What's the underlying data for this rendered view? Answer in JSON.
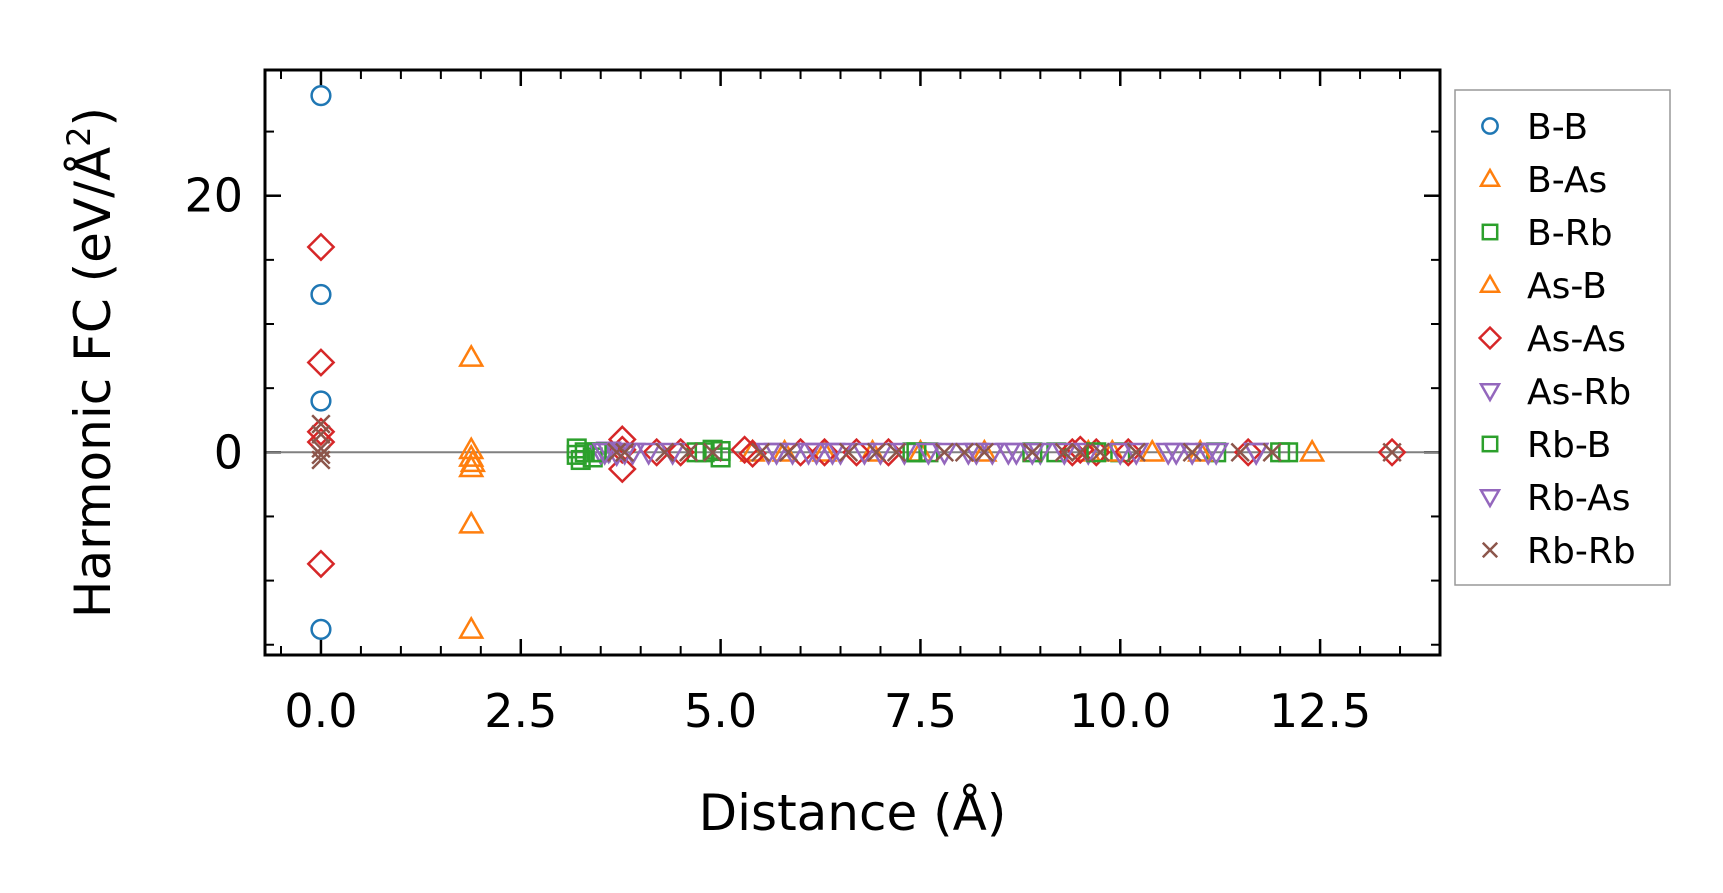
{
  "chart_data": {
    "type": "scatter",
    "title": "",
    "xlabel": "Distance (Å)",
    "ylabel_main": "Harmonic FC (eV/Å",
    "ylabel_sup": "2",
    "ylabel_close": ")",
    "xlim": [
      -0.7,
      14.0
    ],
    "ylim": [
      -15.8,
      29.8
    ],
    "xticks": [
      0.0,
      2.5,
      5.0,
      7.5,
      10.0,
      12.5
    ],
    "xtick_labels": [
      "0.0",
      "2.5",
      "5.0",
      "7.5",
      "10.0",
      "12.5"
    ],
    "yticks": [
      0,
      20
    ],
    "ytick_labels": [
      "0",
      "20"
    ],
    "zero_line": true,
    "grid": false,
    "legend_position": "outside-right",
    "series": [
      {
        "name": "B-B",
        "marker": "circle",
        "color": "#1f77b4",
        "x": [
          0,
          0,
          0,
          0
        ],
        "y": [
          27.8,
          12.3,
          4.0,
          -13.8
        ]
      },
      {
        "name": "B-As",
        "marker": "triangle-up",
        "color": "#ff7f0e",
        "x": [
          1.88,
          1.88,
          1.88,
          1.88,
          1.88,
          1.88,
          5.8,
          6.3,
          7.5,
          9.6,
          10.4,
          12.4
        ],
        "y": [
          7.4,
          0.2,
          -0.4,
          -1.2,
          -5.6,
          -13.8,
          0.0,
          0.0,
          0.0,
          0.0,
          0.0,
          0.0
        ]
      },
      {
        "name": "B-Rb",
        "marker": "square",
        "color": "#2ca02c",
        "x": [
          3.2,
          3.2,
          3.25,
          3.4,
          3.5,
          4.7,
          4.9,
          5.0,
          5.0,
          7.4,
          7.6,
          9.2,
          10.0,
          11.2,
          12.1
        ],
        "y": [
          0.3,
          -0.2,
          -0.6,
          -0.4,
          0.0,
          0.0,
          0.2,
          -0.4,
          0.1,
          0.0,
          0.0,
          0.0,
          0.0,
          0.0,
          0.0
        ]
      },
      {
        "name": "As-B",
        "marker": "triangle-up",
        "color": "#ff7f0e",
        "x": [
          1.9,
          5.4,
          6.9,
          8.3,
          9.9,
          11.0
        ],
        "y": [
          -0.8,
          0.0,
          0.0,
          0.0,
          0.0,
          0.0
        ]
      },
      {
        "name": "As-As",
        "marker": "diamond",
        "color": "#d62728",
        "x": [
          0,
          0,
          0,
          0,
          0,
          3.77,
          3.77,
          3.77,
          4.2,
          4.5,
          5.3,
          5.4,
          6.0,
          6.3,
          6.7,
          7.1,
          9.4,
          9.5,
          9.7,
          10.1,
          11.6,
          13.4
        ],
        "y": [
          16.0,
          7.0,
          1.6,
          0.8,
          -8.7,
          1.0,
          0.2,
          -1.3,
          0.0,
          0.0,
          0.2,
          -0.1,
          0.0,
          0.0,
          0.0,
          0.0,
          0.0,
          0.2,
          0.0,
          0.0,
          0.0,
          0.0
        ]
      },
      {
        "name": "As-Rb",
        "marker": "triangle-down",
        "color": "#9467bd",
        "x": [
          3.5,
          3.6,
          3.7,
          3.9,
          4.1,
          4.4,
          5.6,
          5.9,
          6.2,
          6.4,
          6.8,
          7.3,
          7.8,
          8.1,
          8.4,
          8.7,
          9.0,
          9.6,
          10.2,
          10.6,
          10.9,
          11.2,
          11.7
        ],
        "y": [
          0.0,
          0.1,
          -0.1,
          0.0,
          0.0,
          0.0,
          0.0,
          0.0,
          0.0,
          0.0,
          0.0,
          0.0,
          0.0,
          0.0,
          0.0,
          0.0,
          0.0,
          0.0,
          0.0,
          0.0,
          0.0,
          0.0,
          0.0
        ]
      },
      {
        "name": "Rb-B",
        "marker": "square",
        "color": "#2ca02c",
        "x": [
          3.3,
          3.45,
          4.8,
          7.45,
          8.9,
          9.7,
          12.0
        ],
        "y": [
          0.0,
          0.0,
          0.0,
          0.0,
          0.0,
          0.0,
          0.0
        ]
      },
      {
        "name": "Rb-As",
        "marker": "triangle-down",
        "color": "#9467bd",
        "x": [
          3.55,
          3.8,
          5.7,
          6.1,
          6.5,
          7.0,
          7.6,
          8.2,
          8.6,
          8.9,
          9.3,
          10.0,
          10.7,
          11.1,
          11.7
        ],
        "y": [
          0.0,
          0.0,
          0.0,
          0.0,
          0.0,
          0.0,
          0.0,
          0.0,
          0.0,
          0.0,
          0.0,
          0.0,
          0.0,
          0.0,
          0.0
        ]
      },
      {
        "name": "Rb-Rb",
        "marker": "x",
        "color": "#8c564b",
        "x": [
          0,
          0,
          0,
          0,
          0,
          3.7,
          3.8,
          4.3,
          4.6,
          4.9,
          5.5,
          5.85,
          6.6,
          6.95,
          7.2,
          7.8,
          8.05,
          8.3,
          8.9,
          9.3,
          9.5,
          9.75,
          10.2,
          10.9,
          11.5,
          11.9,
          13.4
        ],
        "y": [
          2.2,
          1.4,
          0.3,
          -0.2,
          -0.6,
          0.0,
          0.0,
          0.0,
          0.0,
          0.0,
          0.0,
          0.0,
          0.0,
          0.0,
          0.0,
          0.0,
          0.0,
          0.0,
          0.0,
          0.0,
          0.0,
          0.0,
          0.0,
          0.0,
          0.0,
          0.0,
          0.0
        ]
      }
    ]
  }
}
